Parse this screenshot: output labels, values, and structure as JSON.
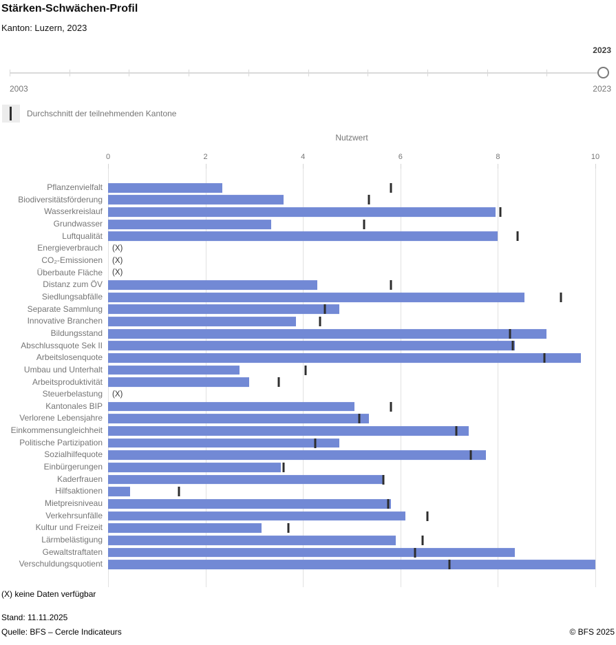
{
  "header": {
    "title": "Stärken-Schwächen-Profil",
    "subtitle": "Kanton: Luzern, 2023"
  },
  "slider": {
    "selected_year": "2023",
    "min_label": "2003",
    "max_label": "2023",
    "tick_count": 11
  },
  "legend": {
    "average_label": "Durchschnitt der teilnehmenden Kantone"
  },
  "chart_data": {
    "type": "bar",
    "orientation": "horizontal",
    "xlabel": "Nutzwert",
    "xlim": [
      0,
      10
    ],
    "x_ticks": [
      0,
      2,
      4,
      6,
      8,
      10
    ],
    "grid": true,
    "no_data_marker": "(X)",
    "series_names": [
      "Kanton Luzern 2023",
      "Durchschnitt der teilnehmenden Kantone"
    ],
    "rows": [
      {
        "label": "Pflanzenvielfalt",
        "value": 2.35,
        "average": 5.8
      },
      {
        "label": "Biodiversitätsförderung",
        "value": 3.6,
        "average": 5.35
      },
      {
        "label": "Wasserkreislauf",
        "value": 7.95,
        "average": 8.05
      },
      {
        "label": "Grundwasser",
        "value": 3.35,
        "average": 5.25
      },
      {
        "label": "Luftqualität",
        "value": 8.0,
        "average": 8.4
      },
      {
        "label": "Energieverbrauch",
        "value": null,
        "average": null
      },
      {
        "label": "CO₂-Emissionen",
        "value": null,
        "average": null
      },
      {
        "label": "Überbaute Fläche",
        "value": null,
        "average": null
      },
      {
        "label": "Distanz zum ÖV",
        "value": 4.3,
        "average": 5.8
      },
      {
        "label": "Siedlungsabfälle",
        "value": 8.55,
        "average": 9.3
      },
      {
        "label": "Separate Sammlung",
        "value": 4.75,
        "average": 4.45
      },
      {
        "label": "Innovative Branchen",
        "value": 3.85,
        "average": 4.35
      },
      {
        "label": "Bildungsstand",
        "value": 9.0,
        "average": 8.25
      },
      {
        "label": "Abschlussquote Sek II",
        "value": 8.35,
        "average": 8.3
      },
      {
        "label": "Arbeitslosenquote",
        "value": 9.7,
        "average": 8.95
      },
      {
        "label": "Umbau und Unterhalt",
        "value": 2.7,
        "average": 4.05
      },
      {
        "label": "Arbeitsproduktivität",
        "value": 2.9,
        "average": 3.5
      },
      {
        "label": "Steuerbelastung",
        "value": null,
        "average": null
      },
      {
        "label": "Kantonales BIP",
        "value": 5.05,
        "average": 5.8
      },
      {
        "label": "Verlorene Lebensjahre",
        "value": 5.35,
        "average": 5.15
      },
      {
        "label": "Einkommensungleichheit",
        "value": 7.4,
        "average": 7.15
      },
      {
        "label": "Politische Partizipation",
        "value": 4.75,
        "average": 4.25
      },
      {
        "label": "Sozialhilfequote",
        "value": 7.75,
        "average": 7.45
      },
      {
        "label": "Einbürgerungen",
        "value": 3.55,
        "average": 3.6
      },
      {
        "label": "Kaderfrauen",
        "value": 5.65,
        "average": 5.65
      },
      {
        "label": "Hilfsaktionen",
        "value": 0.45,
        "average": 1.45
      },
      {
        "label": "Mietpreisniveau",
        "value": 5.8,
        "average": 5.75
      },
      {
        "label": "Verkehrsunfälle",
        "value": 6.1,
        "average": 6.55
      },
      {
        "label": "Kultur und Freizeit",
        "value": 3.15,
        "average": 3.7
      },
      {
        "label": "Lärmbelästigung",
        "value": 5.9,
        "average": 6.45
      },
      {
        "label": "Gewaltstraftaten",
        "value": 8.35,
        "average": 6.3
      },
      {
        "label": "Verschuldungsquotient",
        "value": 10.0,
        "average": 7.0
      }
    ]
  },
  "footnote": "(X) keine Daten verfügbar",
  "footer": {
    "stand": "Stand: 11.11.2025",
    "source": "Quelle: BFS – Cercle Indicateurs",
    "copyright": "© BFS 2025"
  },
  "colors": {
    "bar": "#7289d5",
    "average_marker": "#2e2e2e",
    "gridline": "#e1e1e1",
    "label_gray": "#757575"
  }
}
